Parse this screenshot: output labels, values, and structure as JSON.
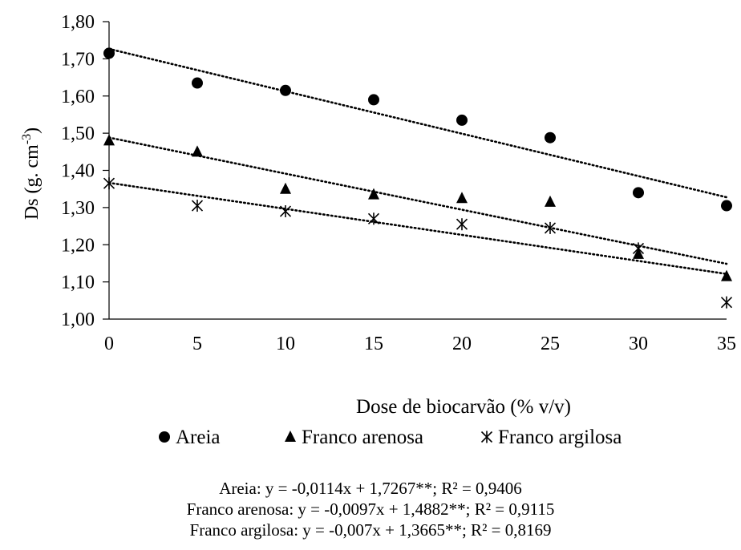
{
  "chart_data": {
    "type": "scatter",
    "title": "",
    "xlabel": "Dose de biocarvão (% v/v)",
    "ylabel": "Ds (g. cm⁻³)",
    "xlim": [
      0,
      35
    ],
    "ylim": [
      1.0,
      1.8
    ],
    "x_ticks": [
      "0",
      "5",
      "10",
      "15",
      "20",
      "25",
      "30",
      "35"
    ],
    "y_ticks": [
      "1,00",
      "1,10",
      "1,20",
      "1,30",
      "1,40",
      "1,50",
      "1,60",
      "1,70",
      "1,80"
    ],
    "grid": false,
    "legend_position": "bottom",
    "x": [
      0,
      5,
      10,
      15,
      20,
      25,
      30,
      35
    ],
    "series": [
      {
        "name": "Areia",
        "marker": "circle",
        "values": [
          1.715,
          1.635,
          1.615,
          1.59,
          1.535,
          1.488,
          1.34,
          1.305
        ],
        "trend": {
          "slope": -0.0114,
          "intercept": 1.7267
        }
      },
      {
        "name": "Franco arenosa",
        "marker": "triangle",
        "values": [
          1.48,
          1.45,
          1.35,
          1.335,
          1.325,
          1.315,
          1.175,
          1.115
        ],
        "trend": {
          "slope": -0.0097,
          "intercept": 1.4882
        }
      },
      {
        "name": "Franco argilosa",
        "marker": "asterisk",
        "values": [
          1.365,
          1.305,
          1.29,
          1.27,
          1.255,
          1.245,
          1.19,
          1.045
        ],
        "trend": {
          "slope": -0.007,
          "intercept": 1.3665
        }
      }
    ],
    "equations": [
      "Areia: y = -0,0114x + 1,7267**; R² = 0,9406",
      "Franco arenosa: y = -0,0097x + 1,4882**; R² = 0,9115",
      "Franco argilosa: y = -0,007x + 1,3665**; R² = 0,8169"
    ]
  }
}
